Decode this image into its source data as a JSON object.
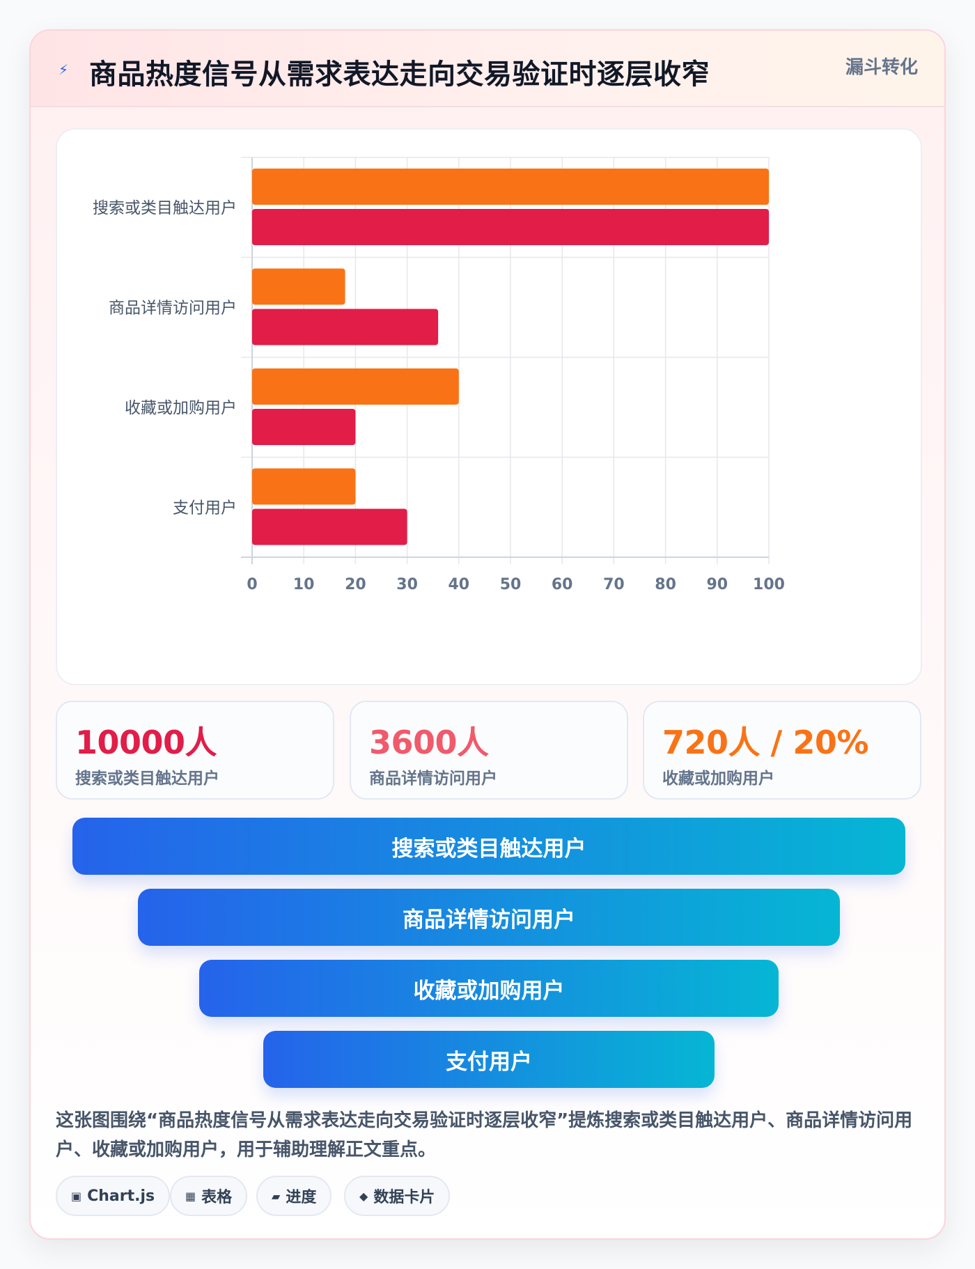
{
  "header": {
    "title": "商品热度信号从需求表达走向交易验证时逐层收窄",
    "tag": "漏斗转化"
  },
  "chart_data": {
    "type": "bar",
    "orientation": "horizontal",
    "categories": [
      "搜索或类目触达用户",
      "商品详情访问用户",
      "收藏或加购用户",
      "支付用户"
    ],
    "series": [
      {
        "values": [
          100,
          18,
          40,
          20
        ],
        "color": "#f97316"
      },
      {
        "values": [
          100,
          36,
          20,
          30
        ],
        "color": "#e11d48"
      }
    ],
    "xlim": [
      0,
      100
    ],
    "xticks": [
      "0",
      "10",
      "20",
      "30",
      "40",
      "50",
      "60",
      "70",
      "80",
      "90",
      "100"
    ],
    "grid": true,
    "legend": "none"
  },
  "kpis": [
    {
      "value": "10000人",
      "label": "搜索或类目触达用户",
      "color": "#e11d48"
    },
    {
      "value": "3600人",
      "label": "商品详情访问用户",
      "color": "#f05a6b"
    },
    {
      "value": "720人 / 20%",
      "label": "收藏或加购用户",
      "color": "#f97316"
    }
  ],
  "funnel": [
    "搜索或类目触达用户",
    "商品详情访问用户",
    "收藏或加购用户",
    "支付用户"
  ],
  "description": "这张图围绕“商品热度信号从需求表达走向交易验证时逐层收窄”提炼搜索或类目触达用户、商品详情访问用户、收藏或加购用户，用于辅助理解正文重点。",
  "chips": [
    {
      "icon": "▣",
      "label": "Chart.js"
    },
    {
      "icon": "▦",
      "label": "表格"
    },
    {
      "icon": "▰",
      "label": "进度"
    },
    {
      "icon": "◆",
      "label": "数据卡片"
    }
  ],
  "icons": {
    "title": "⚡"
  }
}
